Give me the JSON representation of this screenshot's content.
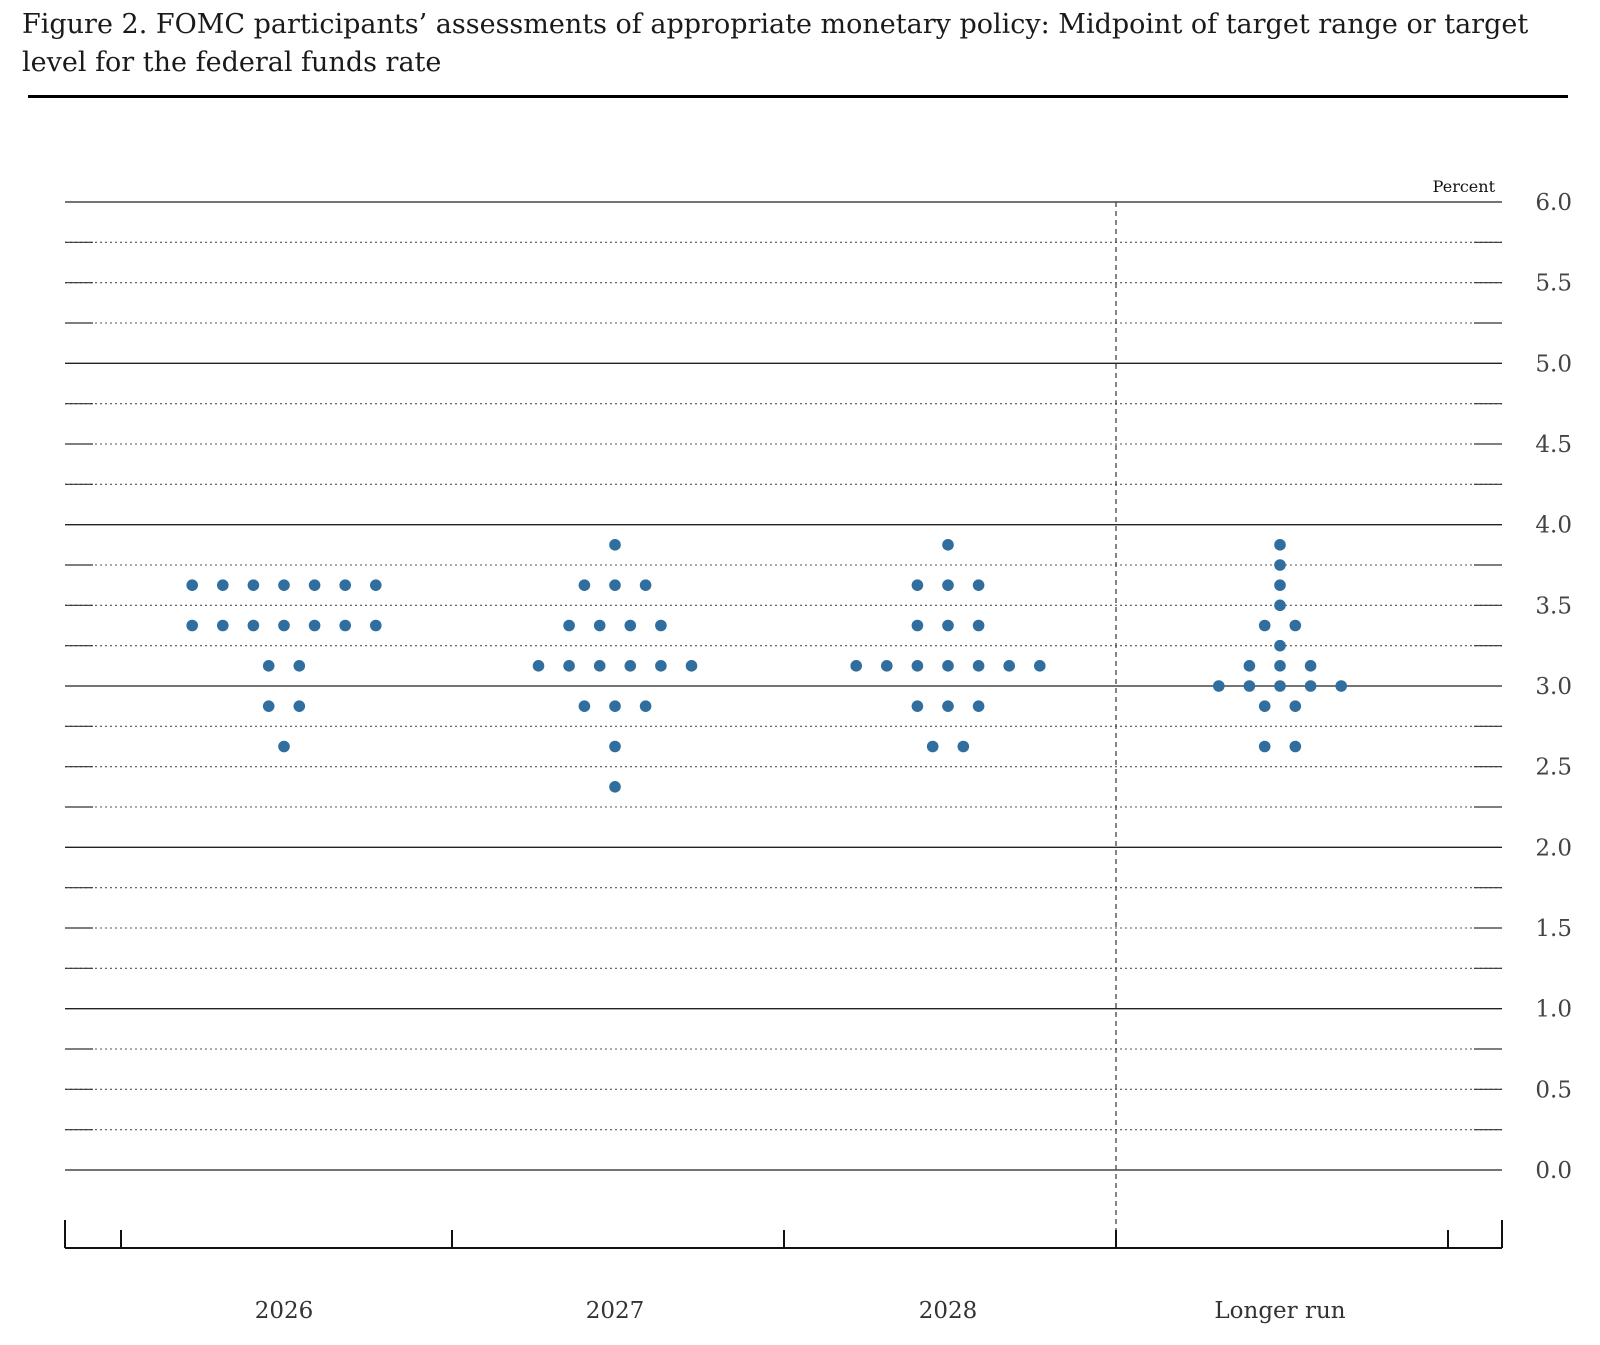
{
  "figure": {
    "title": "Figure 2. FOMC participants’ assessments of appropriate monetary policy: Midpoint of target range or target level for the federal funds rate"
  },
  "chart_data": {
    "type": "scatter",
    "title": "Figure 2. FOMC participants’ assessments of appropriate monetary policy: Midpoint of target range or target level for the federal funds rate",
    "ylabel": "Percent",
    "xlabel": "",
    "ylim": [
      0.0,
      6.0
    ],
    "y_ticks": [
      "6.0",
      "5.5",
      "5.0",
      "4.5",
      "4.0",
      "3.5",
      "3.0",
      "2.5",
      "2.0",
      "1.5",
      "1.0",
      "0.5",
      "0.0"
    ],
    "grid": true,
    "dot_color": "#2f6e9e",
    "categories": [
      "2026",
      "2027",
      "2028",
      "Longer run"
    ],
    "series": [
      {
        "category": "2026",
        "points": [
          {
            "y": 3.625,
            "count": 7
          },
          {
            "y": 3.375,
            "count": 7
          },
          {
            "y": 3.125,
            "count": 2
          },
          {
            "y": 2.875,
            "count": 2
          },
          {
            "y": 2.625,
            "count": 1
          }
        ]
      },
      {
        "category": "2027",
        "points": [
          {
            "y": 3.875,
            "count": 1
          },
          {
            "y": 3.625,
            "count": 3
          },
          {
            "y": 3.375,
            "count": 4
          },
          {
            "y": 3.125,
            "count": 6
          },
          {
            "y": 2.875,
            "count": 3
          },
          {
            "y": 2.625,
            "count": 1
          },
          {
            "y": 2.375,
            "count": 1
          }
        ]
      },
      {
        "category": "2028",
        "points": [
          {
            "y": 3.875,
            "count": 1
          },
          {
            "y": 3.625,
            "count": 3
          },
          {
            "y": 3.375,
            "count": 3
          },
          {
            "y": 3.125,
            "count": 7
          },
          {
            "y": 2.875,
            "count": 3
          },
          {
            "y": 2.625,
            "count": 2
          }
        ]
      },
      {
        "category": "Longer run",
        "points": [
          {
            "y": 3.875,
            "count": 1
          },
          {
            "y": 3.75,
            "count": 1
          },
          {
            "y": 3.625,
            "count": 1
          },
          {
            "y": 3.5,
            "count": 1
          },
          {
            "y": 3.375,
            "count": 2
          },
          {
            "y": 3.25,
            "count": 1
          },
          {
            "y": 3.125,
            "count": 3
          },
          {
            "y": 3.0,
            "count": 5
          },
          {
            "y": 2.875,
            "count": 2
          },
          {
            "y": 2.625,
            "count": 2
          }
        ]
      }
    ]
  }
}
